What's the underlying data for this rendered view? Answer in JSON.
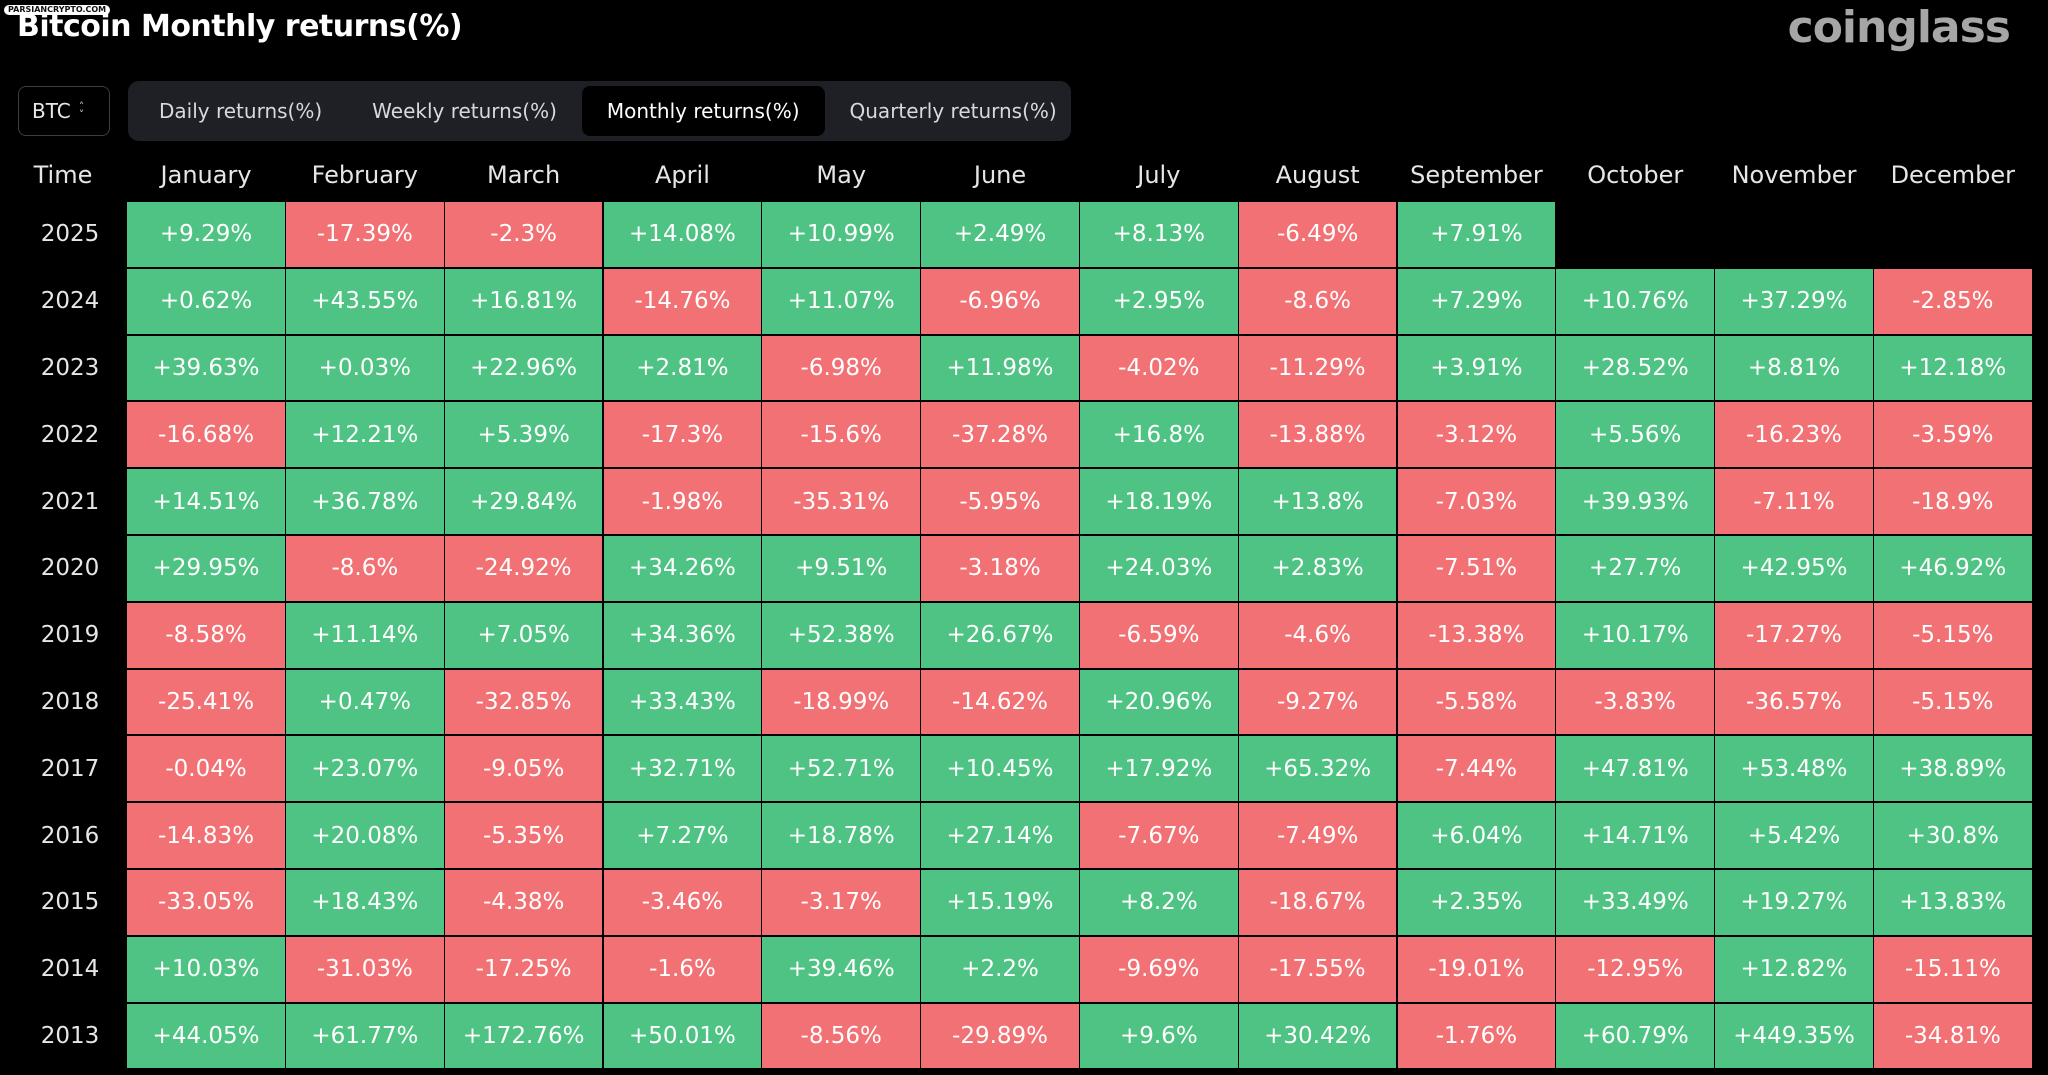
{
  "watermark": "PARSIANCRYPTO.COM",
  "title": "Bitcoin Monthly returns(%)",
  "brand": "coinglass",
  "coin_select": {
    "value": "BTC"
  },
  "tabs": [
    {
      "label": "Daily returns(%)",
      "active": false
    },
    {
      "label": "Weekly returns(%)",
      "active": false
    },
    {
      "label": "Monthly returns(%)",
      "active": true
    },
    {
      "label": "Quarterly returns(%)",
      "active": false
    }
  ],
  "colors": {
    "positive": "#4fc383",
    "negative": "#f27175",
    "background": "#000000"
  },
  "table": {
    "time_header": "Time",
    "months": [
      "January",
      "February",
      "March",
      "April",
      "May",
      "June",
      "July",
      "August",
      "September",
      "October",
      "November",
      "December"
    ],
    "rows": [
      {
        "year": "2025",
        "values": [
          "+9.29%",
          "-17.39%",
          "-2.3%",
          "+14.08%",
          "+10.99%",
          "+2.49%",
          "+8.13%",
          "-6.49%",
          "+7.91%",
          "",
          "",
          ""
        ]
      },
      {
        "year": "2024",
        "values": [
          "+0.62%",
          "+43.55%",
          "+16.81%",
          "-14.76%",
          "+11.07%",
          "-6.96%",
          "+2.95%",
          "-8.6%",
          "+7.29%",
          "+10.76%",
          "+37.29%",
          "-2.85%"
        ]
      },
      {
        "year": "2023",
        "values": [
          "+39.63%",
          "+0.03%",
          "+22.96%",
          "+2.81%",
          "-6.98%",
          "+11.98%",
          "-4.02%",
          "-11.29%",
          "+3.91%",
          "+28.52%",
          "+8.81%",
          "+12.18%"
        ]
      },
      {
        "year": "2022",
        "values": [
          "-16.68%",
          "+12.21%",
          "+5.39%",
          "-17.3%",
          "-15.6%",
          "-37.28%",
          "+16.8%",
          "-13.88%",
          "-3.12%",
          "+5.56%",
          "-16.23%",
          "-3.59%"
        ]
      },
      {
        "year": "2021",
        "values": [
          "+14.51%",
          "+36.78%",
          "+29.84%",
          "-1.98%",
          "-35.31%",
          "-5.95%",
          "+18.19%",
          "+13.8%",
          "-7.03%",
          "+39.93%",
          "-7.11%",
          "-18.9%"
        ]
      },
      {
        "year": "2020",
        "values": [
          "+29.95%",
          "-8.6%",
          "-24.92%",
          "+34.26%",
          "+9.51%",
          "-3.18%",
          "+24.03%",
          "+2.83%",
          "-7.51%",
          "+27.7%",
          "+42.95%",
          "+46.92%"
        ]
      },
      {
        "year": "2019",
        "values": [
          "-8.58%",
          "+11.14%",
          "+7.05%",
          "+34.36%",
          "+52.38%",
          "+26.67%",
          "-6.59%",
          "-4.6%",
          "-13.38%",
          "+10.17%",
          "-17.27%",
          "-5.15%"
        ]
      },
      {
        "year": "2018",
        "values": [
          "-25.41%",
          "+0.47%",
          "-32.85%",
          "+33.43%",
          "-18.99%",
          "-14.62%",
          "+20.96%",
          "-9.27%",
          "-5.58%",
          "-3.83%",
          "-36.57%",
          "-5.15%"
        ]
      },
      {
        "year": "2017",
        "values": [
          "-0.04%",
          "+23.07%",
          "-9.05%",
          "+32.71%",
          "+52.71%",
          "+10.45%",
          "+17.92%",
          "+65.32%",
          "-7.44%",
          "+47.81%",
          "+53.48%",
          "+38.89%"
        ]
      },
      {
        "year": "2016",
        "values": [
          "-14.83%",
          "+20.08%",
          "-5.35%",
          "+7.27%",
          "+18.78%",
          "+27.14%",
          "-7.67%",
          "-7.49%",
          "+6.04%",
          "+14.71%",
          "+5.42%",
          "+30.8%"
        ]
      },
      {
        "year": "2015",
        "values": [
          "-33.05%",
          "+18.43%",
          "-4.38%",
          "-3.46%",
          "-3.17%",
          "+15.19%",
          "+8.2%",
          "-18.67%",
          "+2.35%",
          "+33.49%",
          "+19.27%",
          "+13.83%"
        ]
      },
      {
        "year": "2014",
        "values": [
          "+10.03%",
          "-31.03%",
          "-17.25%",
          "-1.6%",
          "+39.46%",
          "+2.2%",
          "-9.69%",
          "-17.55%",
          "-19.01%",
          "-12.95%",
          "+12.82%",
          "-15.11%"
        ]
      },
      {
        "year": "2013",
        "values": [
          "+44.05%",
          "+61.77%",
          "+172.76%",
          "+50.01%",
          "-8.56%",
          "-29.89%",
          "+9.6%",
          "+30.42%",
          "-1.76%",
          "+60.79%",
          "+449.35%",
          "-34.81%"
        ]
      }
    ]
  }
}
